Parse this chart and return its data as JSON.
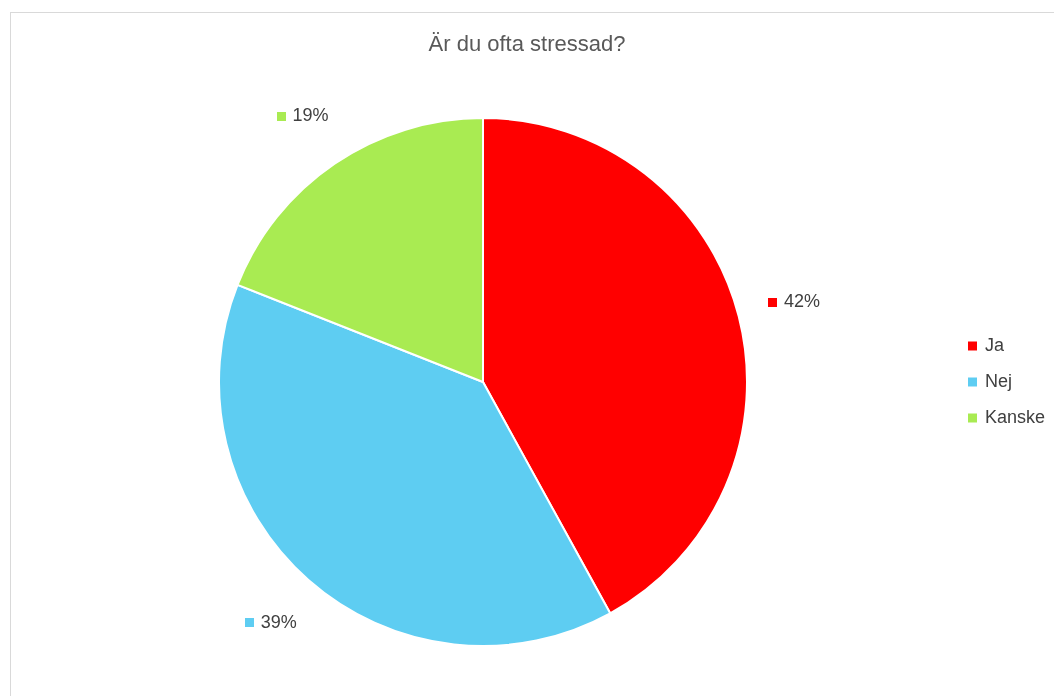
{
  "chart_data": {
    "type": "pie",
    "title": "Är du ofta stressad?",
    "categories": [
      "Ja",
      "Nej",
      "Kanske"
    ],
    "values": [
      42,
      39,
      19
    ],
    "colors": [
      "#ff0000",
      "#5ecdf2",
      "#a9eb52"
    ],
    "value_labels": [
      "42%",
      "39%",
      "19%"
    ],
    "legend": "right"
  }
}
